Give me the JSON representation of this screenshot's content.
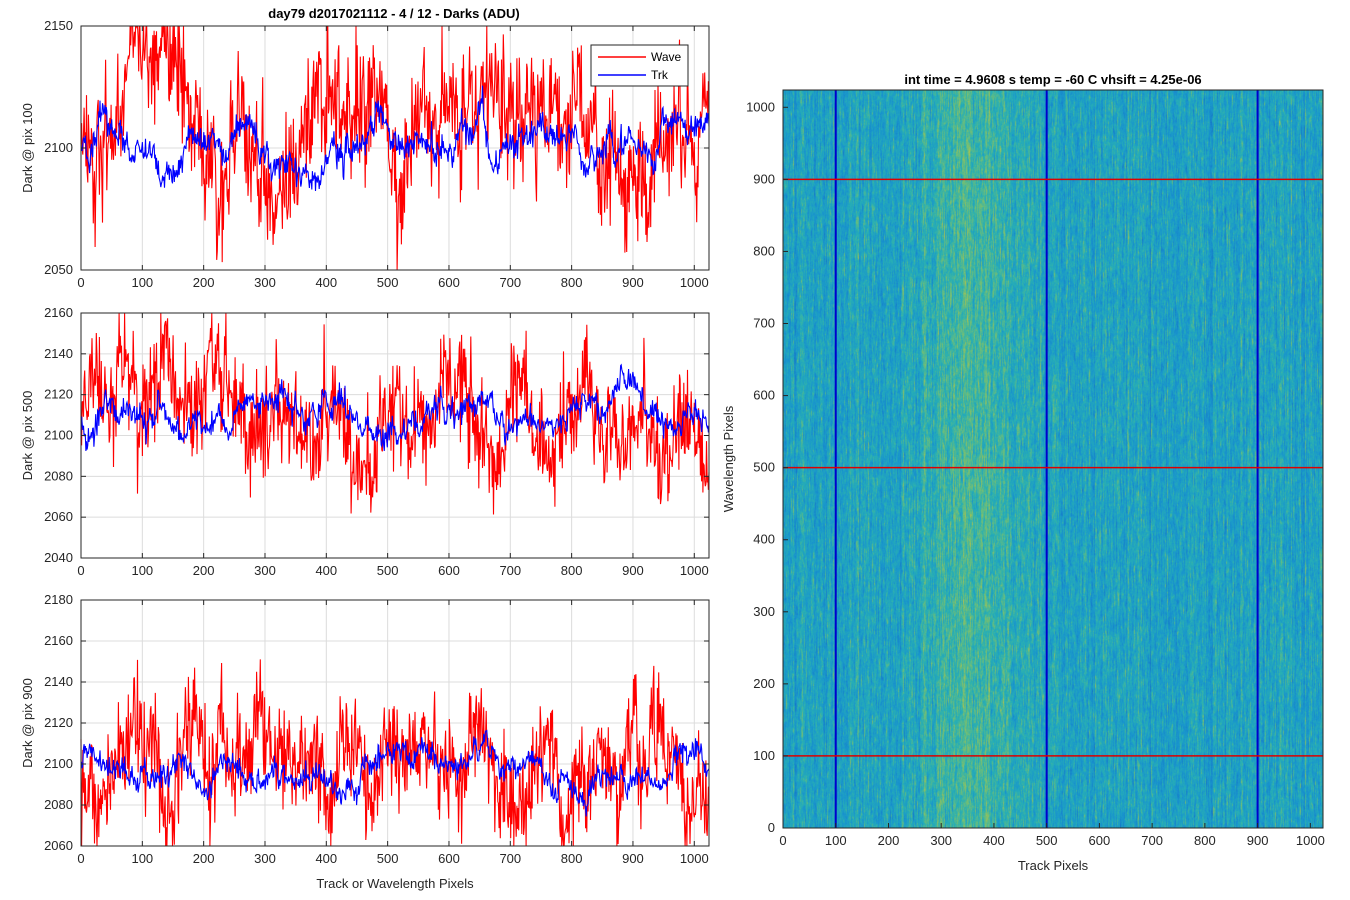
{
  "figure_title": "day79 d2017021112 - 4 / 12 - Darks (ADU)",
  "colors": {
    "wave": "#ff0000",
    "trk": "#0000ff",
    "grid": "#dcdcdc",
    "axis": "#262626"
  },
  "chart_data": [
    {
      "type": "line",
      "title": "day79 d2017021112 - 4 / 12 - Darks (ADU)",
      "xlabel": "",
      "ylabel": "Dark @ pix 100",
      "xlim": [
        0,
        1024
      ],
      "ylim": [
        2050,
        2150
      ],
      "xticks": [
        0,
        100,
        200,
        300,
        400,
        500,
        600,
        700,
        800,
        900,
        1000
      ],
      "yticks": [
        2050,
        2100,
        2150
      ],
      "grid": true,
      "legend": {
        "location": "top-right",
        "entries": [
          "Wave",
          "Trk"
        ]
      },
      "series": [
        {
          "name": "Wave",
          "color": "#ff0000",
          "mean": 2103,
          "noise_amplitude": 12,
          "points": 1024
        },
        {
          "name": "Trk",
          "color": "#0000ff",
          "mean": 2100,
          "noise_amplitude": 5,
          "points": 1024
        }
      ]
    },
    {
      "type": "line",
      "title": "",
      "xlabel": "",
      "ylabel": "Dark @ pix 500",
      "xlim": [
        0,
        1024
      ],
      "ylim": [
        2040,
        2160
      ],
      "xticks": [
        0,
        100,
        200,
        300,
        400,
        500,
        600,
        700,
        800,
        900,
        1000
      ],
      "yticks": [
        2040,
        2060,
        2080,
        2100,
        2120,
        2140,
        2160
      ],
      "grid": true,
      "series": [
        {
          "name": "Wave",
          "color": "#ff0000",
          "mean": 2103,
          "noise_amplitude": 12,
          "points": 1024
        },
        {
          "name": "Trk",
          "color": "#0000ff",
          "mean": 2105,
          "noise_amplitude": 5,
          "points": 1024
        }
      ]
    },
    {
      "type": "line",
      "title": "",
      "xlabel": "Track or Wavelength Pixels",
      "ylabel": "Dark @ pix 900",
      "xlim": [
        0,
        1024
      ],
      "ylim": [
        2060,
        2180
      ],
      "xticks": [
        0,
        100,
        200,
        300,
        400,
        500,
        600,
        700,
        800,
        900,
        1000
      ],
      "yticks": [
        2060,
        2080,
        2100,
        2120,
        2140,
        2160,
        2180
      ],
      "grid": true,
      "series": [
        {
          "name": "Wave",
          "color": "#ff0000",
          "mean": 2104,
          "noise_amplitude": 12,
          "points": 1024
        },
        {
          "name": "Trk",
          "color": "#0000ff",
          "mean": 2100,
          "noise_amplitude": 5,
          "points": 1024
        }
      ]
    },
    {
      "type": "heatmap",
      "title": "int time = 4.9608 s    temp = -60 C    vhsift = 4.25e-06",
      "xlabel": "Track Pixels",
      "ylabel": "Wavelength Pixels",
      "xlim": [
        0,
        1024
      ],
      "ylim": [
        0,
        1024
      ],
      "xticks": [
        0,
        100,
        200,
        300,
        400,
        500,
        600,
        700,
        800,
        900,
        1000
      ],
      "yticks": [
        0,
        100,
        200,
        300,
        400,
        500,
        600,
        700,
        800,
        900,
        1000
      ],
      "colormap": "parula",
      "horizontal_markers": {
        "values": [
          100,
          500,
          900
        ],
        "color": "#dd0000"
      },
      "vertical_markers": {
        "values": [
          100,
          500,
          900
        ],
        "color": "#0000cc"
      }
    }
  ]
}
